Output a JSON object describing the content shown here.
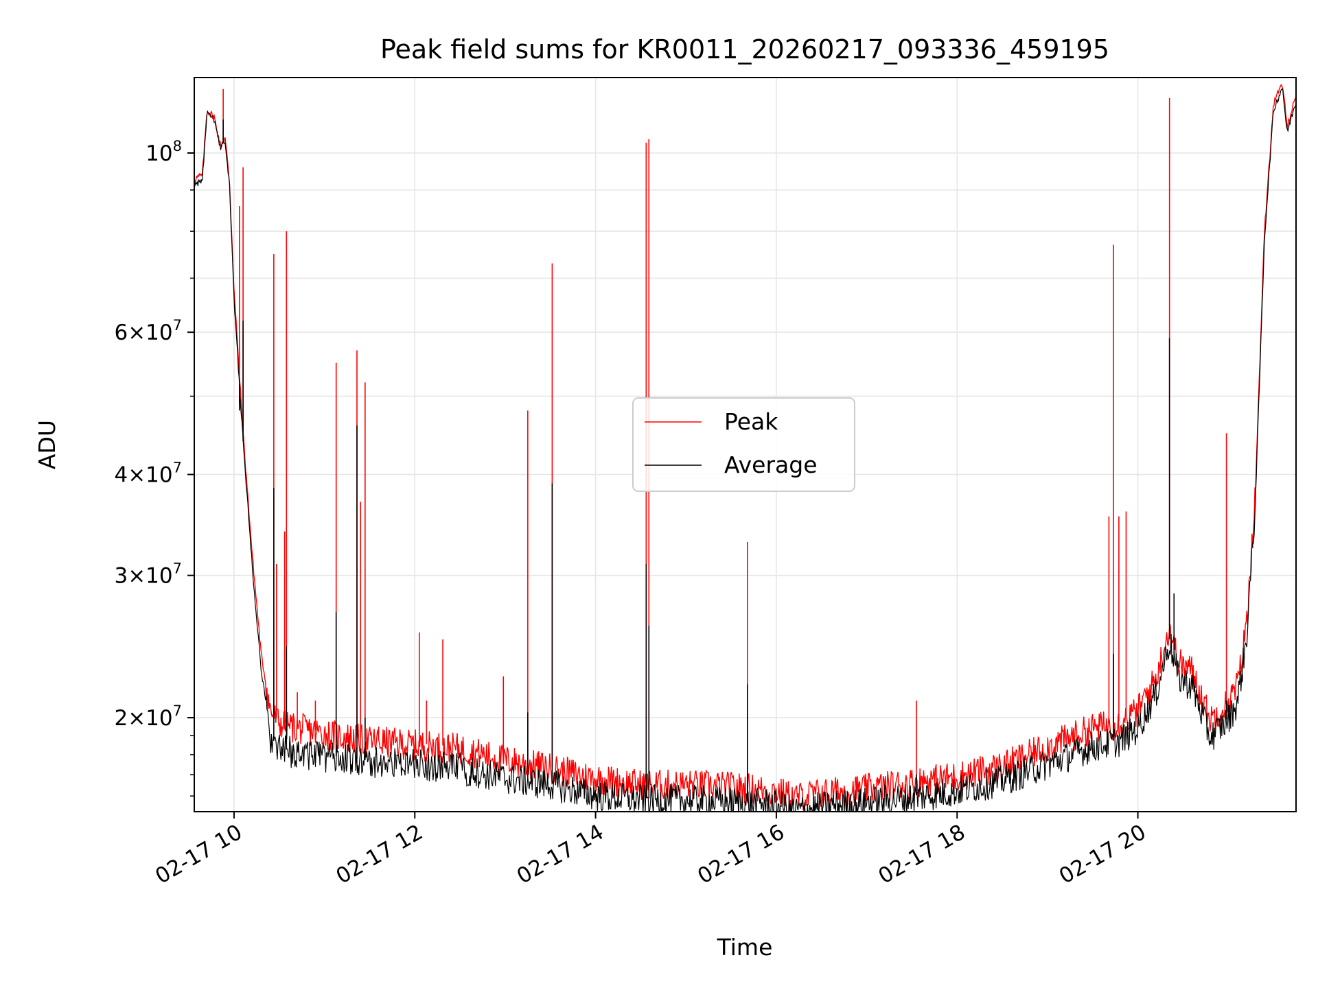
{
  "chart_data": {
    "type": "line",
    "title": "Peak field sums for KR0011_20260217_093336_459195",
    "xlabel": "Time",
    "ylabel": "ADU",
    "yscale": "log",
    "xlim_hours": [
      9.56,
      21.75
    ],
    "ylim": [
      15300000,
      124000000
    ],
    "x_ticks": [
      {
        "hour": 10,
        "label": "02-17 10"
      },
      {
        "hour": 12,
        "label": "02-17 12"
      },
      {
        "hour": 14,
        "label": "02-17 14"
      },
      {
        "hour": 16,
        "label": "02-17 16"
      },
      {
        "hour": 18,
        "label": "02-17 18"
      },
      {
        "hour": 20,
        "label": "02-17 20"
      }
    ],
    "y_major_ticks": [
      {
        "value": 100000000,
        "base": "10",
        "exp": "8"
      },
      {
        "value": 20000000,
        "base": "2×10",
        "exp": "7"
      },
      {
        "value": 30000000,
        "base": "3×10",
        "exp": "7"
      },
      {
        "value": 40000000,
        "base": "4×10",
        "exp": "7"
      },
      {
        "value": 60000000,
        "base": "6×10",
        "exp": "7"
      }
    ],
    "y_minor_gridlines": [
      50000000,
      70000000,
      80000000,
      90000000
    ],
    "legend": {
      "position": "center",
      "entries": [
        "Peak",
        "Average"
      ]
    },
    "colors": {
      "Peak": "#ff0000",
      "Average": "#000000",
      "grid": "#e6e6e6"
    },
    "series": [
      {
        "name": "Peak",
        "color": "#ff0000",
        "baseline": [
          [
            9.56,
            93000000
          ],
          [
            9.65,
            94000000
          ],
          [
            9.7,
            113000000
          ],
          [
            9.78,
            111000000
          ],
          [
            9.85,
            102000000
          ],
          [
            9.9,
            105000000
          ],
          [
            9.95,
            92000000
          ],
          [
            10.0,
            68000000
          ],
          [
            10.1,
            45000000
          ],
          [
            10.2,
            32000000
          ],
          [
            10.3,
            24000000
          ],
          [
            10.4,
            20500000
          ],
          [
            10.5,
            19800000
          ],
          [
            10.7,
            19500000
          ],
          [
            11.0,
            19200000
          ],
          [
            11.5,
            18800000
          ],
          [
            12.0,
            18600000
          ],
          [
            12.5,
            18400000
          ],
          [
            13.0,
            17800000
          ],
          [
            13.5,
            17400000
          ],
          [
            14.0,
            16900000
          ],
          [
            14.5,
            16600000
          ],
          [
            15.0,
            16600000
          ],
          [
            15.5,
            16500000
          ],
          [
            16.0,
            16300000
          ],
          [
            16.2,
            16000000
          ],
          [
            16.5,
            16200000
          ],
          [
            17.0,
            16400000
          ],
          [
            17.5,
            16700000
          ],
          [
            18.0,
            17000000
          ],
          [
            18.5,
            17500000
          ],
          [
            19.0,
            18500000
          ],
          [
            19.5,
            19500000
          ],
          [
            19.8,
            19800000
          ],
          [
            20.0,
            20500000
          ],
          [
            20.2,
            22500000
          ],
          [
            20.35,
            26000000
          ],
          [
            20.45,
            23500000
          ],
          [
            20.6,
            23000000
          ],
          [
            20.8,
            20000000
          ],
          [
            21.0,
            21000000
          ],
          [
            21.1,
            22000000
          ],
          [
            21.2,
            26000000
          ],
          [
            21.3,
            38000000
          ],
          [
            21.4,
            80000000
          ],
          [
            21.5,
            115000000
          ],
          [
            21.6,
            122000000
          ],
          [
            21.65,
            108000000
          ],
          [
            21.75,
            118000000
          ]
        ],
        "spikes": [
          [
            9.88,
            120000000
          ],
          [
            10.06,
            86000000
          ],
          [
            10.1,
            96000000
          ],
          [
            10.44,
            75000000
          ],
          [
            10.47,
            31000000
          ],
          [
            10.56,
            34000000
          ],
          [
            10.58,
            80000000
          ],
          [
            10.7,
            21500000
          ],
          [
            10.9,
            21000000
          ],
          [
            11.13,
            55000000
          ],
          [
            11.36,
            57000000
          ],
          [
            11.4,
            37000000
          ],
          [
            11.45,
            52000000
          ],
          [
            11.6,
            19500000
          ],
          [
            12.05,
            25500000
          ],
          [
            12.13,
            21000000
          ],
          [
            12.31,
            25000000
          ],
          [
            12.98,
            22500000
          ],
          [
            13.25,
            48000000
          ],
          [
            13.52,
            73000000
          ],
          [
            14.56,
            103000000
          ],
          [
            14.59,
            104000000
          ],
          [
            15.68,
            33000000
          ],
          [
            17.55,
            21000000
          ],
          [
            19.68,
            35500000
          ],
          [
            19.73,
            77000000
          ],
          [
            19.79,
            35500000
          ],
          [
            19.87,
            36000000
          ],
          [
            20.35,
            117000000
          ],
          [
            20.98,
            45000000
          ]
        ]
      },
      {
        "name": "Average",
        "color": "#000000",
        "baseline": [
          [
            9.56,
            91500000
          ],
          [
            9.65,
            92500000
          ],
          [
            9.7,
            112000000
          ],
          [
            9.78,
            110000000
          ],
          [
            9.85,
            101000000
          ],
          [
            9.9,
            104000000
          ],
          [
            9.95,
            91000000
          ],
          [
            10.0,
            66000000
          ],
          [
            10.1,
            44000000
          ],
          [
            10.2,
            31000000
          ],
          [
            10.3,
            23000000
          ],
          [
            10.4,
            19000000
          ],
          [
            10.5,
            18300000
          ],
          [
            10.7,
            18200000
          ],
          [
            11.0,
            18000000
          ],
          [
            11.5,
            17700000
          ],
          [
            12.0,
            17600000
          ],
          [
            12.5,
            17400000
          ],
          [
            13.0,
            16900000
          ],
          [
            13.5,
            16600000
          ],
          [
            14.0,
            16100000
          ],
          [
            14.5,
            15900000
          ],
          [
            15.0,
            15900000
          ],
          [
            15.5,
            15800000
          ],
          [
            16.0,
            15700000
          ],
          [
            16.2,
            15400000
          ],
          [
            16.5,
            15600000
          ],
          [
            17.0,
            15800000
          ],
          [
            17.5,
            16000000
          ],
          [
            18.0,
            16300000
          ],
          [
            18.5,
            16800000
          ],
          [
            19.0,
            17600000
          ],
          [
            19.5,
            18500000
          ],
          [
            19.8,
            18800000
          ],
          [
            20.0,
            19500000
          ],
          [
            20.2,
            21500000
          ],
          [
            20.35,
            25000000
          ],
          [
            20.45,
            22500000
          ],
          [
            20.6,
            22000000
          ],
          [
            20.8,
            19000000
          ],
          [
            21.0,
            20000000
          ],
          [
            21.1,
            21000000
          ],
          [
            21.2,
            25000000
          ],
          [
            21.3,
            37000000
          ],
          [
            21.4,
            78000000
          ],
          [
            21.5,
            113000000
          ],
          [
            21.6,
            121000000
          ],
          [
            21.65,
            106000000
          ],
          [
            21.75,
            116000000
          ]
        ],
        "spikes": [
          [
            9.88,
            110000000
          ],
          [
            10.06,
            48000000
          ],
          [
            10.1,
            62000000
          ],
          [
            10.44,
            38500000
          ],
          [
            10.58,
            24500000
          ],
          [
            11.13,
            27000000
          ],
          [
            11.36,
            46000000
          ],
          [
            11.45,
            20000000
          ],
          [
            13.25,
            20300000
          ],
          [
            13.52,
            39000000
          ],
          [
            14.56,
            31000000
          ],
          [
            14.59,
            26000000
          ],
          [
            15.68,
            22000000
          ],
          [
            17.55,
            17000000
          ],
          [
            19.73,
            24000000
          ],
          [
            20.35,
            59000000
          ],
          [
            20.4,
            28500000
          ],
          [
            20.98,
            21000000
          ]
        ]
      }
    ]
  }
}
